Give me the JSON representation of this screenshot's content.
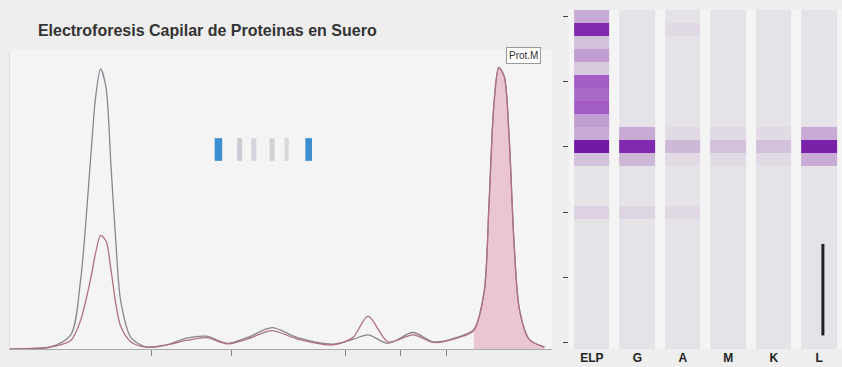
{
  "chart_data": [
    {
      "type": "line",
      "title": "Electroforesis Capilar de Proteinas en Suero",
      "x": [
        0,
        7.4,
        11.2,
        13.0,
        14.9,
        15.8,
        16.7,
        17.7,
        18.6,
        19.5,
        20.4,
        22.3,
        25.1,
        28.8,
        32.5,
        36.2,
        40.0,
        43.7,
        48.3,
        53.0,
        59.5,
        63.2,
        66.0,
        69.7,
        74.3,
        78.1,
        82.7,
        85.5,
        87.4,
        88.3,
        89.2,
        90.1,
        91.1,
        92.0,
        92.9,
        93.9,
        95.7,
        98.5
      ],
      "series": [
        {
          "color": "#8c8490",
          "values": [
            0,
            0.7,
            5,
            24,
            68,
            89,
            98.6,
            92,
            65,
            38,
            17,
            4,
            0.7,
            1.4,
            3.8,
            4.5,
            2,
            4,
            7.5,
            4,
            1.7,
            3.4,
            5,
            2,
            5.8,
            2.5,
            4.3,
            6.8,
            20,
            51,
            86,
            99,
            96,
            75,
            38,
            14,
            3.4,
            0.7
          ]
        },
        {
          "color": "#b0707f",
          "values": [
            0,
            0.7,
            3,
            10,
            25,
            34,
            40,
            38,
            28,
            16,
            8,
            2.5,
            0.7,
            1.4,
            3,
            4,
            1.8,
            3.5,
            6.5,
            3.5,
            1.5,
            4,
            11.6,
            2.5,
            5,
            2.3,
            4,
            6.5,
            20,
            51,
            86,
            99,
            96,
            75,
            38,
            14,
            3.4,
            0.7
          ]
        }
      ],
      "m_spike_range": [
        85.5,
        98.5
      ],
      "annotations": [
        {
          "text": "Prot.M",
          "x": 91.1,
          "y": 99
        }
      ],
      "xlim": [
        0,
        100
      ],
      "xticks": [
        26,
        40.9,
        61.9,
        71.9,
        80.5
      ],
      "ylim": [
        0,
        105
      ],
      "tick_labels": false,
      "grid": false
    },
    {
      "type": "heatmap",
      "categories": [
        "ELP",
        "G",
        "A",
        "M",
        "K",
        "L"
      ],
      "y": [
        0,
        4,
        8,
        12,
        16,
        20,
        24,
        28,
        32,
        36,
        40,
        44,
        48,
        52,
        56,
        60,
        64,
        68,
        72,
        76,
        80,
        84,
        88,
        92,
        96,
        100
      ],
      "cells": [
        [
          0.3,
          0,
          0,
          0,
          0,
          0
        ],
        [
          0.9,
          0,
          0.05,
          0,
          0,
          0
        ],
        [
          0.2,
          0,
          0,
          0,
          0,
          0
        ],
        [
          0.35,
          0,
          0,
          0,
          0,
          0
        ],
        [
          0.15,
          0,
          0,
          0,
          0,
          0
        ],
        [
          0.6,
          0,
          0,
          0,
          0,
          0
        ],
        [
          0.55,
          0,
          0,
          0,
          0,
          0
        ],
        [
          0.6,
          0,
          0,
          0,
          0,
          0
        ],
        [
          0.35,
          0,
          0,
          0,
          0,
          0
        ],
        [
          0.3,
          0.3,
          0.05,
          0.05,
          0.05,
          0.3
        ],
        [
          1,
          0.9,
          0.25,
          0.2,
          0.2,
          0.95
        ],
        [
          0.2,
          0.25,
          0.05,
          0.05,
          0.05,
          0.3
        ],
        [
          0,
          0,
          0,
          0,
          0,
          0
        ],
        [
          0,
          0,
          0,
          0,
          0,
          0
        ],
        [
          0,
          0,
          0,
          0,
          0,
          0
        ],
        [
          0.1,
          0.08,
          0.06,
          0,
          0,
          0
        ],
        [
          0,
          0,
          0,
          0,
          0,
          0
        ],
        [
          0,
          0,
          0,
          0,
          0,
          0
        ],
        [
          0,
          0,
          0,
          0,
          0,
          0
        ],
        [
          0,
          0,
          0,
          0,
          0,
          0
        ],
        [
          0,
          0,
          0,
          0,
          0,
          0
        ],
        [
          0,
          0,
          0,
          0,
          0,
          0
        ],
        [
          0,
          0,
          0,
          0,
          0,
          0
        ],
        [
          0,
          0,
          0,
          0,
          0,
          0
        ],
        [
          0,
          0,
          0,
          0,
          0,
          0
        ],
        [
          0,
          0,
          0,
          0,
          0,
          0
        ]
      ],
      "zlim": [
        0,
        1
      ],
      "ylim": [
        -2,
        102
      ],
      "tick_labels": "x"
    }
  ]
}
